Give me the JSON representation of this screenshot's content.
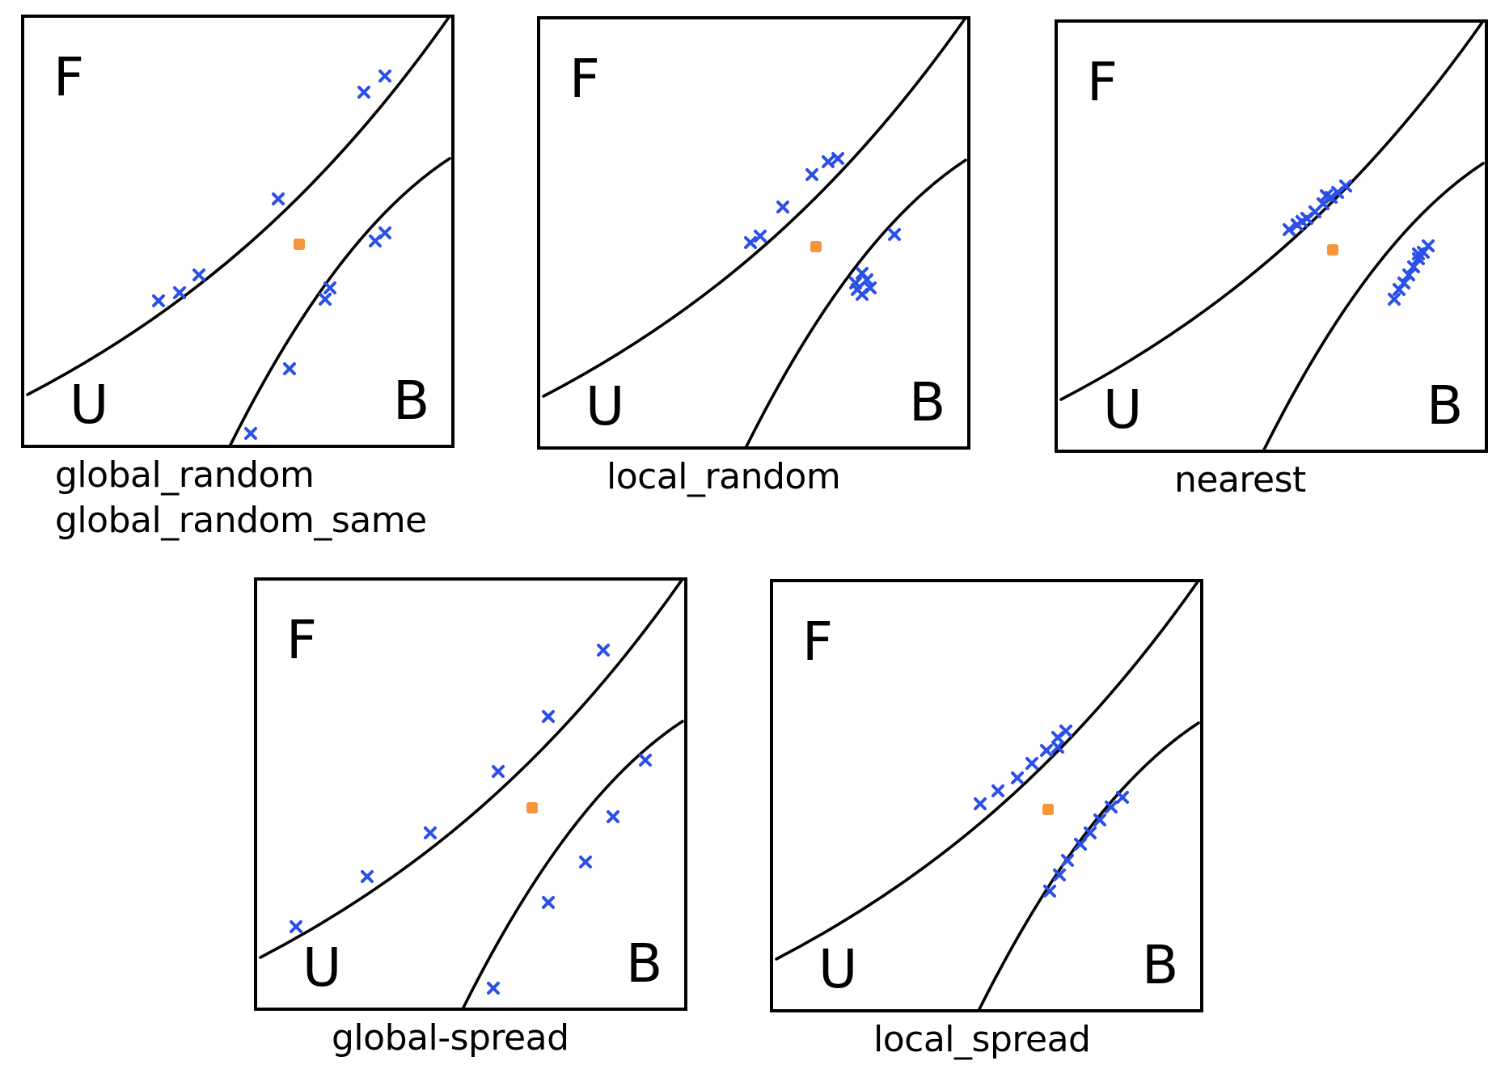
{
  "colors": {
    "ink": "#000000",
    "sample_marker": "#2b50e8",
    "query_point": "#f5963c",
    "background": "#ffffff"
  },
  "region_labels": {
    "top": "F",
    "bottom_left": "U",
    "bottom_right": "B"
  },
  "panels": [
    {
      "id": "global_random",
      "captions": [
        "global_random",
        "global_random_same"
      ],
      "sample_spread": "random, clustered in groups along both boundaries"
    },
    {
      "id": "local_random",
      "captions": [
        "local_random"
      ],
      "sample_spread": "random, near the query point"
    },
    {
      "id": "nearest",
      "captions": [
        "nearest"
      ],
      "sample_spread": "tightly packed closest to the query point"
    },
    {
      "id": "global_spread",
      "captions": [
        "global-spread"
      ],
      "sample_spread": "evenly spread along whole boundaries"
    },
    {
      "id": "local_spread",
      "captions": [
        "local_spread"
      ],
      "sample_spread": "evenly spread near the query point"
    }
  ]
}
